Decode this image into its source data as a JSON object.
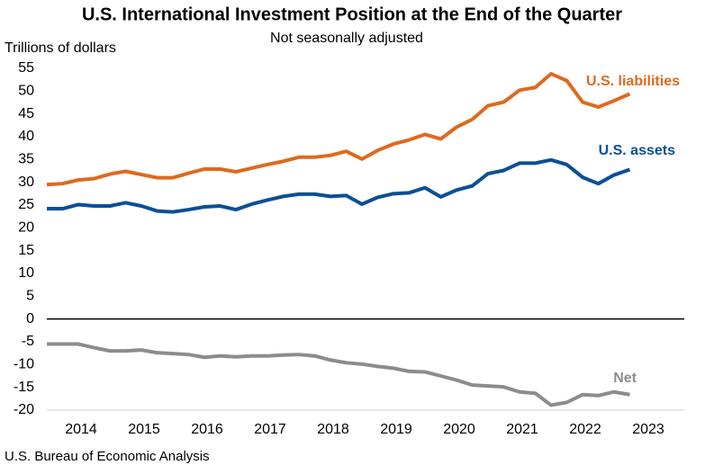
{
  "chart_data": {
    "type": "line",
    "title": "U.S. International Investment Position at the End of the Quarter",
    "subtitle": "Not seasonally adjusted",
    "y_label": "Trillions of dollars",
    "source": "U.S. Bureau of Economic Analysis",
    "categories": [
      null,
      null,
      "2014",
      null,
      null,
      null,
      "2015",
      null,
      null,
      null,
      "2016",
      null,
      null,
      null,
      "2017",
      null,
      null,
      null,
      "2018",
      null,
      null,
      null,
      "2019",
      null,
      null,
      null,
      "2020",
      null,
      null,
      null,
      "2021",
      null,
      null,
      null,
      "2022",
      null,
      null,
      null,
      "2023"
    ],
    "series": [
      {
        "name": "U.S. liabilities",
        "color": "#dd6a1f",
        "values": [
          29.5,
          29.7,
          30.5,
          30.8,
          31.8,
          32.4,
          31.7,
          31.0,
          31.0,
          32.0,
          32.9,
          32.9,
          32.3,
          33.1,
          33.9,
          34.6,
          35.5,
          35.5,
          35.9,
          36.8,
          35.1,
          37.0,
          38.4,
          39.3,
          40.5,
          39.5,
          42.1,
          43.8,
          46.8,
          47.6,
          50.2,
          50.8,
          53.8,
          52.3,
          47.6,
          46.5,
          47.9,
          49.4,
          null
        ]
      },
      {
        "name": "U.S. assets",
        "color": "#0b4f96",
        "values": [
          24.2,
          24.2,
          25.1,
          24.8,
          24.8,
          25.5,
          24.8,
          23.7,
          23.5,
          24.0,
          24.6,
          24.8,
          24.0,
          25.2,
          26.1,
          26.9,
          27.4,
          27.4,
          26.9,
          27.1,
          25.2,
          26.7,
          27.5,
          27.7,
          28.8,
          26.8,
          28.3,
          29.2,
          31.9,
          32.6,
          34.2,
          34.2,
          34.9,
          33.9,
          31.1,
          29.7,
          31.6,
          32.8,
          null
        ]
      },
      {
        "name": "Net",
        "color": "#8c8c8c",
        "values": [
          -5.5,
          -5.5,
          -5.5,
          -6.3,
          -7.0,
          -7.0,
          -6.8,
          -7.4,
          -7.6,
          -7.8,
          -8.4,
          -8.1,
          -8.3,
          -8.1,
          -8.1,
          -7.9,
          -7.8,
          -8.1,
          -9.0,
          -9.6,
          -9.9,
          -10.4,
          -10.8,
          -11.5,
          -11.6,
          -12.5,
          -13.4,
          -14.5,
          -14.7,
          -14.9,
          -16.0,
          -16.3,
          -18.9,
          -18.3,
          -16.6,
          -16.8,
          -16.0,
          -16.6,
          null
        ]
      }
    ],
    "ylim": [
      -20,
      55
    ],
    "yticks": [
      -20,
      -15,
      -10,
      -5,
      0,
      5,
      10,
      15,
      20,
      25,
      30,
      35,
      40,
      45,
      50,
      55
    ],
    "grid": false
  }
}
